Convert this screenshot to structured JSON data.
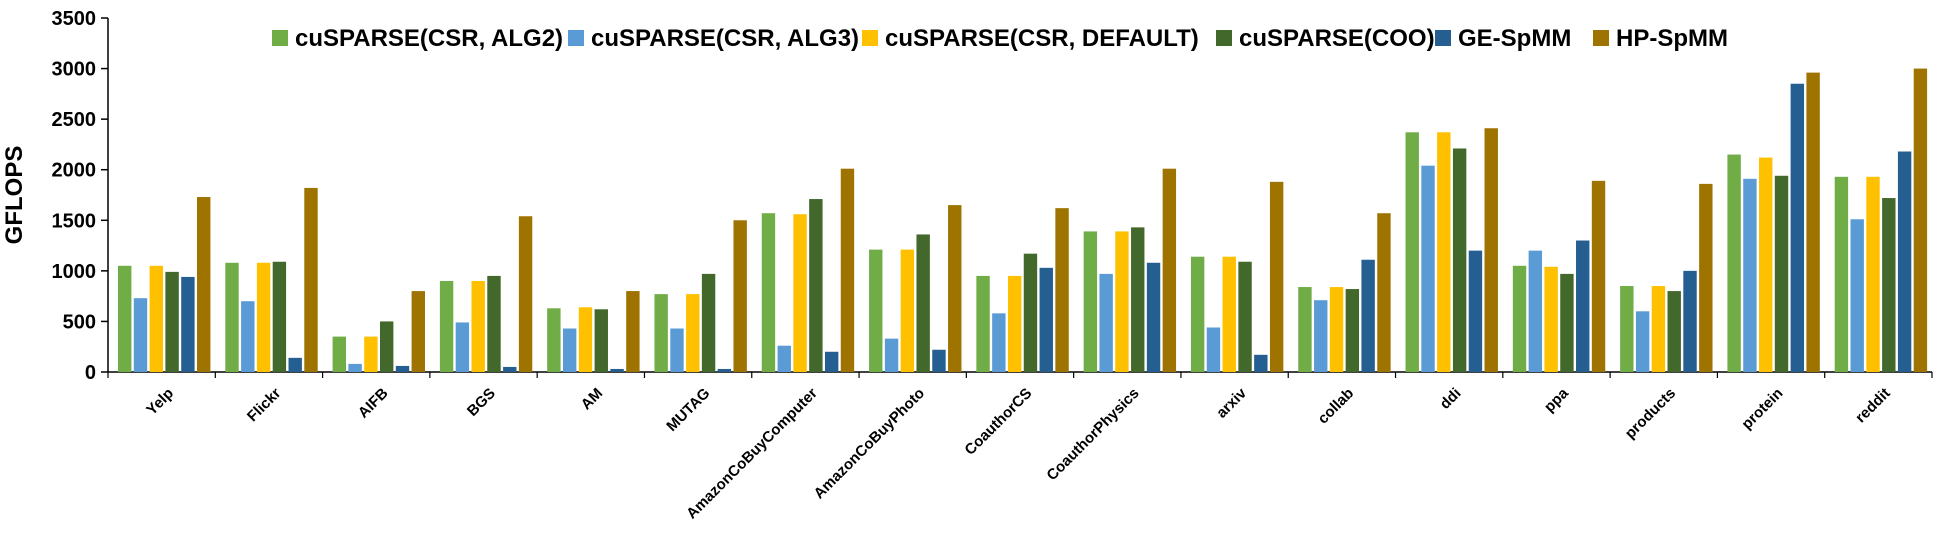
{
  "chart_data": {
    "type": "bar",
    "ylabel": "GFLOPS",
    "ylim": [
      0,
      3500
    ],
    "yticks": [
      0,
      500,
      1000,
      1500,
      2000,
      2500,
      3000,
      3500
    ],
    "grid": false,
    "legend": {
      "placement": "top-center",
      "columns": 6
    },
    "categories": [
      "Yelp",
      "Flickr",
      "AIFB",
      "BGS",
      "AM",
      "MUTAG",
      "AmazonCoBuyComputer",
      "AmazonCoBuyPhoto",
      "CoauthorCS",
      "CoauthorPhysics",
      "arxiv",
      "collab",
      "ddi",
      "ppa",
      "products",
      "protein",
      "reddit"
    ],
    "series": [
      {
        "name": "cuSPARSE(CSR, ALG2)",
        "color": "#70ad47",
        "values": [
          1050,
          1080,
          350,
          900,
          630,
          770,
          1570,
          1210,
          950,
          1390,
          1140,
          840,
          2370,
          1050,
          850,
          2150,
          1930
        ]
      },
      {
        "name": "cuSPARSE(CSR, ALG3)",
        "color": "#5b9bd5",
        "values": [
          730,
          700,
          80,
          490,
          430,
          430,
          260,
          330,
          580,
          970,
          440,
          710,
          2040,
          1200,
          600,
          1910,
          1510
        ]
      },
      {
        "name": "cuSPARSE(CSR, DEFAULT)",
        "color": "#ffc000",
        "values": [
          1050,
          1080,
          350,
          900,
          640,
          770,
          1560,
          1210,
          950,
          1390,
          1140,
          840,
          2370,
          1040,
          850,
          2120,
          1930
        ]
      },
      {
        "name": "cuSPARSE(COO)",
        "color": "#43682b",
        "values": [
          990,
          1090,
          500,
          950,
          620,
          970,
          1710,
          1360,
          1170,
          1430,
          1090,
          820,
          2210,
          970,
          800,
          1940,
          1720
        ]
      },
      {
        "name": "GE-SpMM",
        "color": "#255e91",
        "values": [
          940,
          140,
          60,
          50,
          30,
          30,
          200,
          220,
          1030,
          1080,
          170,
          1110,
          1200,
          1300,
          1000,
          2850,
          2180
        ]
      },
      {
        "name": "HP-SpMM",
        "color": "#9e7300",
        "values": [
          1730,
          1820,
          800,
          1540,
          800,
          1500,
          2010,
          1650,
          1620,
          2010,
          1880,
          1570,
          2410,
          1890,
          1860,
          2960,
          3000
        ]
      }
    ]
  }
}
